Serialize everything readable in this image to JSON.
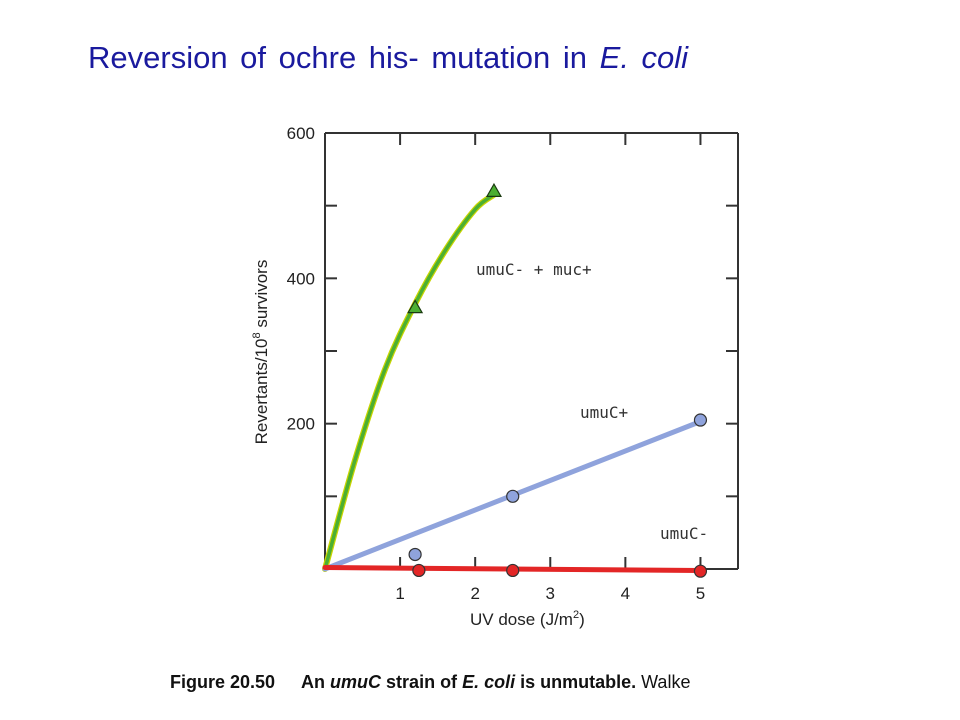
{
  "slide": {
    "title_prefix": "Reversion of ochre his- mutation in",
    "title_italic": "E. coli"
  },
  "caption": {
    "figure_number": "Figure 20.50",
    "text_part1": "An ",
    "text_italic1": "umuC",
    "text_part2": " strain of ",
    "text_italic2": "E. coli",
    "text_part3": " is unmutable.",
    "author_fragment": " Walke"
  },
  "colors": {
    "title": "#1a1a9e",
    "umuC_muc": "#4caf32",
    "umuC_muc_edge": "#c8d400",
    "umuC_plus": "#8fa3dc",
    "umuC_minus": "#e32626",
    "axis": "#333333"
  },
  "chart_data": {
    "type": "line",
    "xlabel_prefix": "UV dose (J/m",
    "xlabel_sup": "2",
    "xlabel_suffix": ")",
    "ylabel_prefix": "Revertants/10",
    "ylabel_sup": "8",
    "ylabel_suffix": " survivors",
    "xlim": [
      0,
      5.5
    ],
    "ylim": [
      0,
      600
    ],
    "x_ticks": [
      1,
      2,
      3,
      4,
      5
    ],
    "y_tick_labels": [
      200,
      400,
      600
    ],
    "grid": false,
    "series": [
      {
        "name": "umuC- + muc+",
        "marker": "triangle",
        "color": "#4caf32",
        "curve": [
          [
            0,
            0
          ],
          [
            0.4,
            150
          ],
          [
            0.8,
            275
          ],
          [
            1.2,
            365
          ],
          [
            1.6,
            438
          ],
          [
            2.0,
            495
          ],
          [
            2.25,
            515
          ]
        ],
        "points": [
          [
            1.2,
            360
          ],
          [
            2.25,
            520
          ]
        ]
      },
      {
        "name": "umuC+",
        "marker": "circle",
        "color": "#8fa3dc",
        "curve": [
          [
            0,
            0
          ],
          [
            5.0,
            203
          ]
        ],
        "points": [
          [
            1.2,
            20
          ],
          [
            2.5,
            100
          ],
          [
            5.0,
            205
          ]
        ]
      },
      {
        "name": "umuC-",
        "marker": "circle",
        "color": "#e32626",
        "curve": [
          [
            0,
            2
          ],
          [
            5.0,
            -2
          ]
        ],
        "points": [
          [
            1.25,
            -2
          ],
          [
            2.5,
            -2
          ],
          [
            5.0,
            -3
          ]
        ]
      }
    ]
  }
}
